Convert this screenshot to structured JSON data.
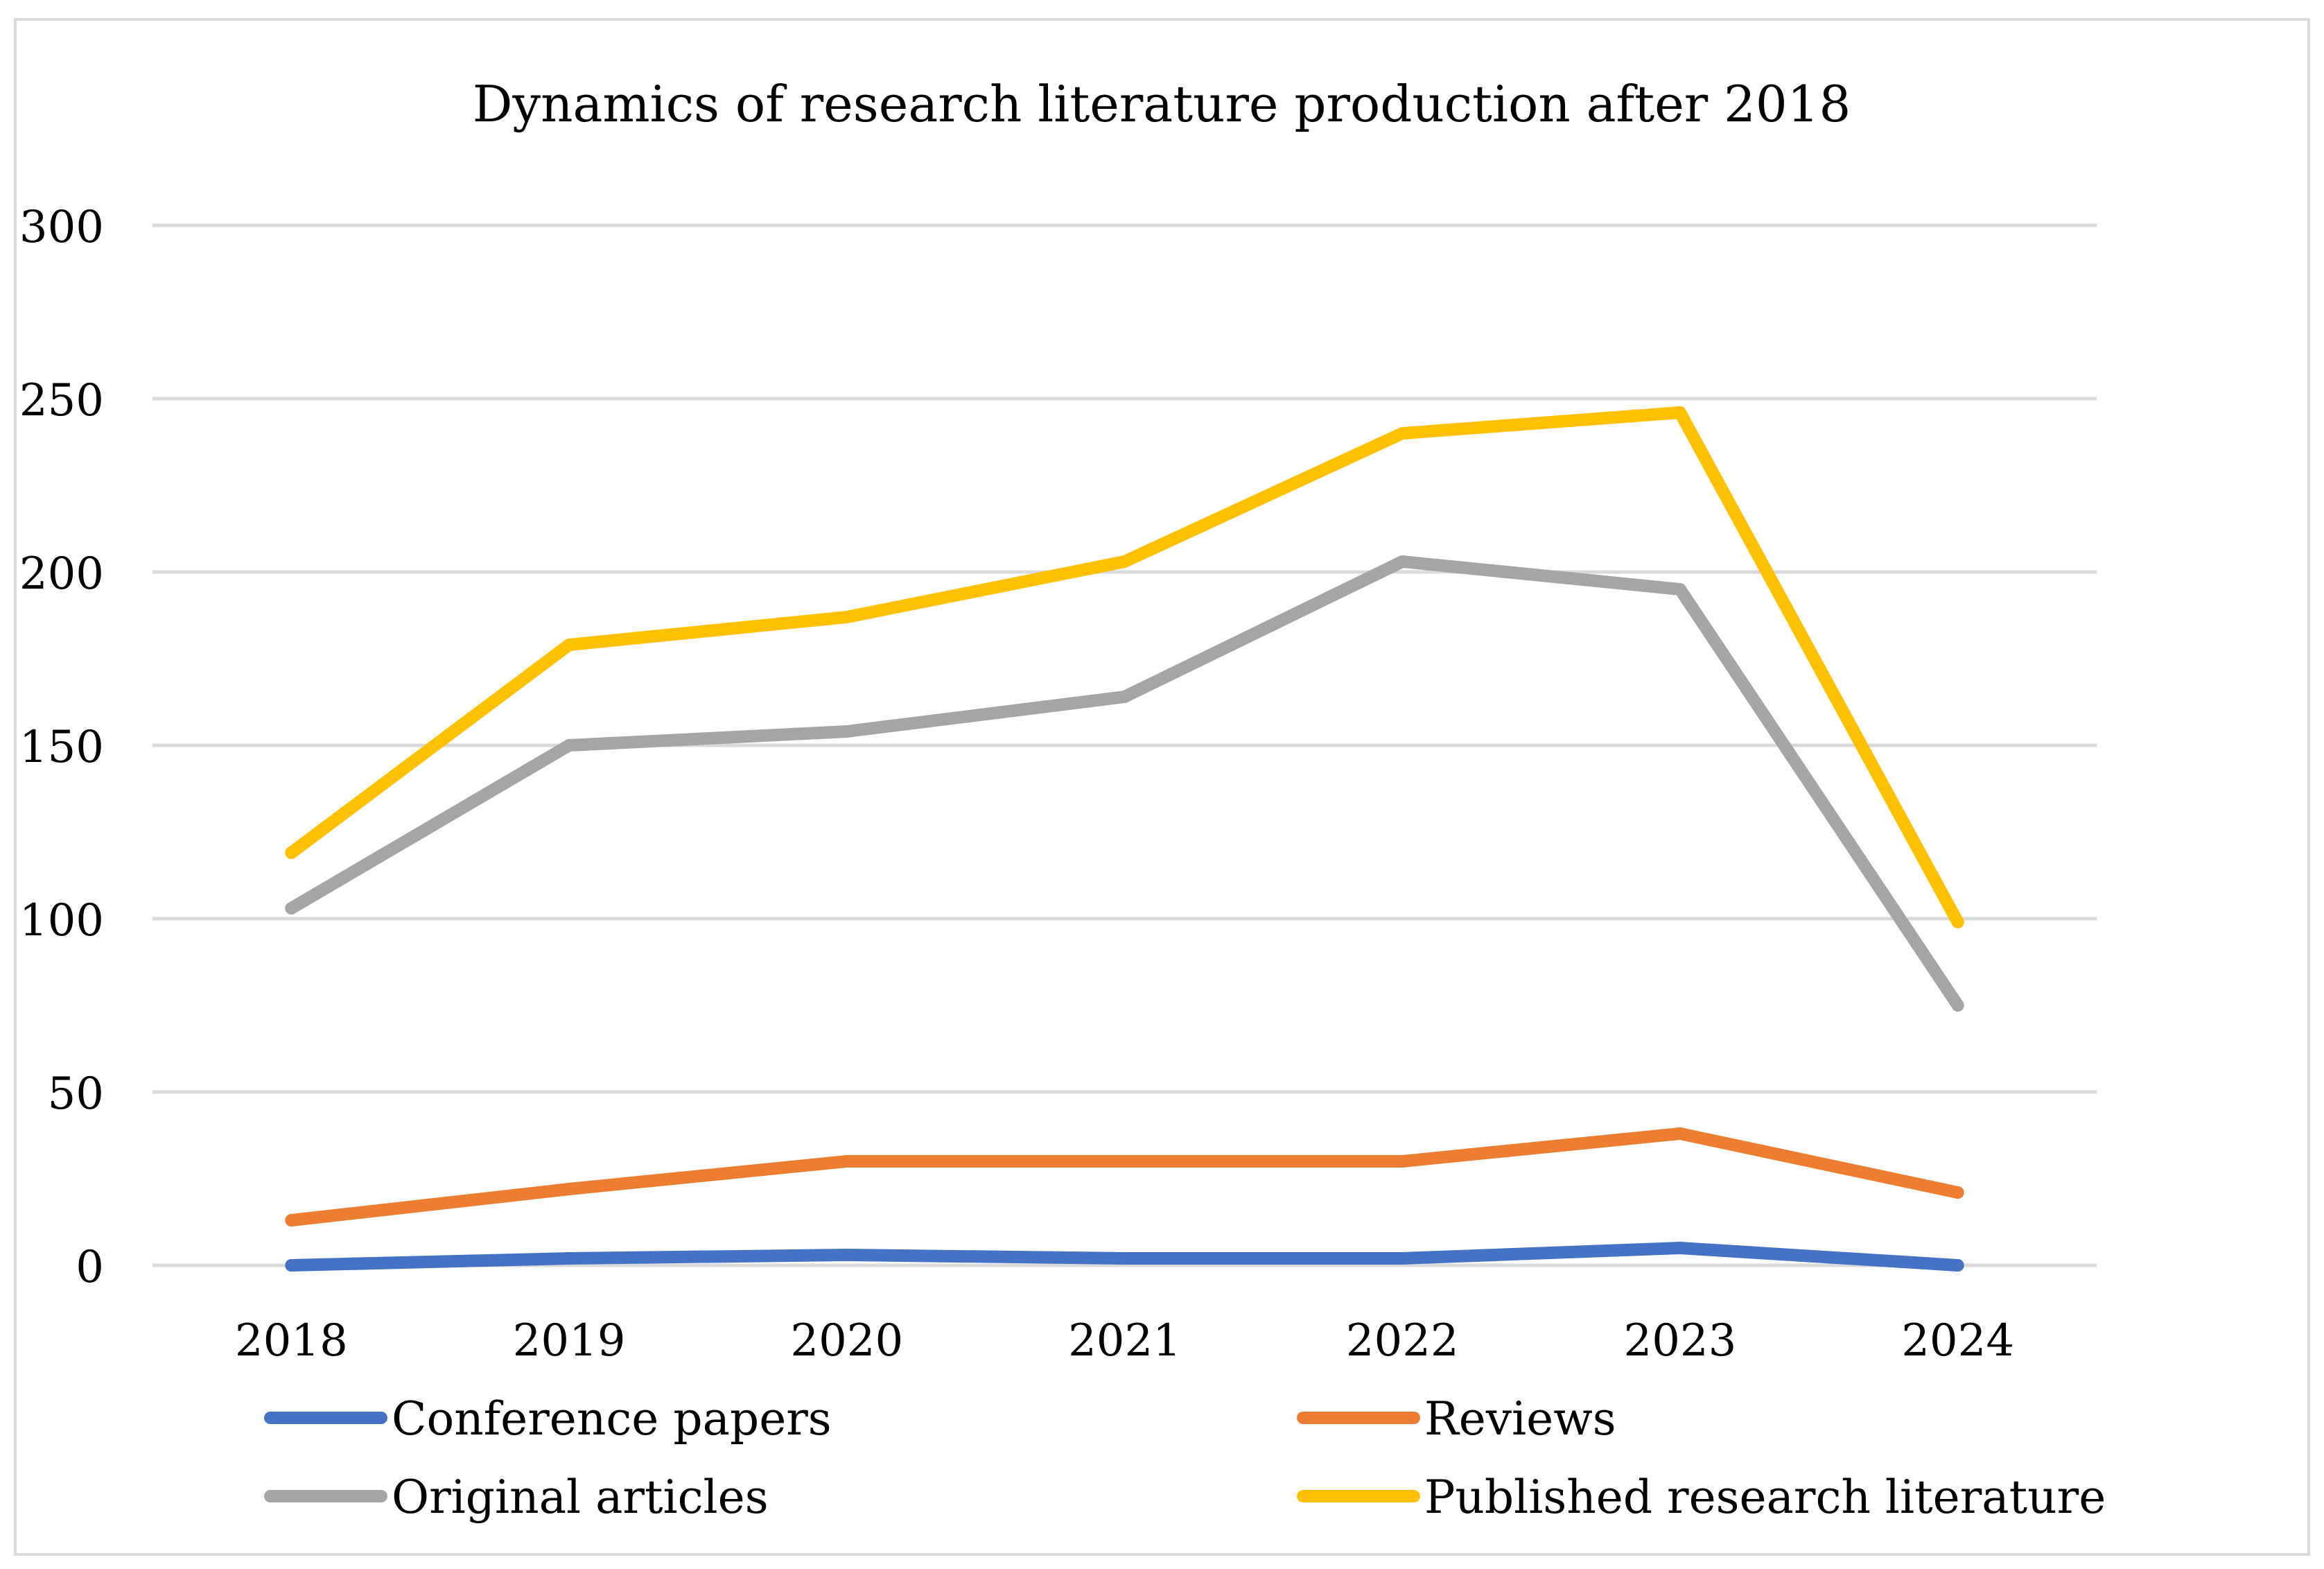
{
  "chart_data": {
    "type": "line",
    "title": "Dynamics of research literature production after 2018",
    "xlabel": "",
    "ylabel": "",
    "categories": [
      "2018",
      "2019",
      "2020",
      "2021",
      "2022",
      "2023",
      "2024"
    ],
    "ylim": [
      0,
      300
    ],
    "yticks": [
      0,
      50,
      100,
      150,
      200,
      250,
      300
    ],
    "grid": true,
    "legend_position": "bottom",
    "series": [
      {
        "name": "Conference papers",
        "color": "#4472C4",
        "values": [
          0,
          2,
          3,
          2,
          2,
          5,
          0
        ]
      },
      {
        "name": "Reviews",
        "color": "#ED7D31",
        "values": [
          13,
          22,
          30,
          30,
          30,
          38,
          21
        ]
      },
      {
        "name": "Original articles",
        "color": "#A5A5A5",
        "values": [
          103,
          150,
          154,
          164,
          203,
          195,
          75
        ]
      },
      {
        "name": "Published research literature",
        "color": "#FFC000",
        "values": [
          119,
          179,
          187,
          203,
          240,
          246,
          99
        ]
      }
    ]
  }
}
